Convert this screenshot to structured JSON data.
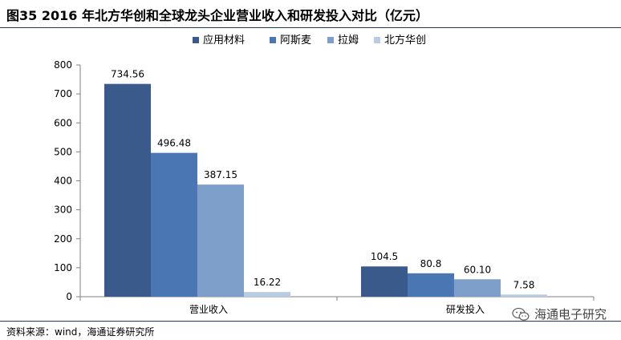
{
  "figure": {
    "title": "图35 2016 年北方华创和全球龙头企业营业收入和研发投入对比（亿元）",
    "source": "资料来源：wind，海通证券研究所",
    "watermark": "海通电子研究",
    "watermark_icon": "wechat-icon"
  },
  "chart_data": {
    "type": "bar",
    "categories": [
      "营业收入",
      "研发投入"
    ],
    "series": [
      {
        "name": "应用材料",
        "values": [
          734.56,
          104.5
        ],
        "labels": [
          "734.56",
          "104.5"
        ],
        "color": "#3a5a8c"
      },
      {
        "name": "阿斯麦",
        "values": [
          496.48,
          80.8
        ],
        "labels": [
          "496.48",
          "80.8"
        ],
        "color": "#4a76b4"
      },
      {
        "name": "拉姆",
        "values": [
          387.15,
          60.1
        ],
        "labels": [
          "387.15",
          "60.10"
        ],
        "color": "#7f9fcb"
      },
      {
        "name": "北方华创",
        "values": [
          16.22,
          7.58
        ],
        "labels": [
          "16.22",
          "7.58"
        ],
        "color": "#b8cce4"
      }
    ],
    "ylim": [
      0,
      800
    ],
    "yticks": [
      0,
      100,
      200,
      300,
      400,
      500,
      600,
      700,
      800
    ],
    "grid": false,
    "legend": "top"
  }
}
